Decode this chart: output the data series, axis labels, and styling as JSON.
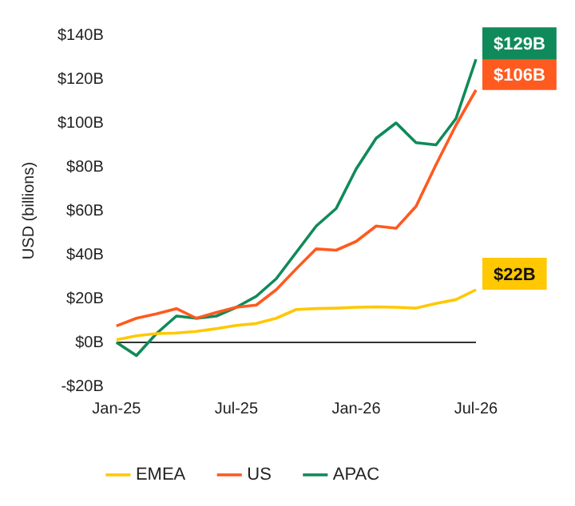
{
  "chart_data": {
    "type": "line",
    "ylabel": "USD (billions)",
    "categories": [
      "Jan-25",
      null,
      null,
      null,
      null,
      null,
      "Jul-25",
      null,
      null,
      null,
      null,
      null,
      "Jan-26",
      null,
      null,
      null,
      null,
      null,
      "Jul-26"
    ],
    "series": [
      {
        "name": "EMEA",
        "color": "#ffc800",
        "values": [
          1.2,
          3,
          4,
          4.3,
          5,
          6.3,
          7.7,
          8.6,
          11,
          15,
          15.4,
          15.6,
          16,
          16.2,
          16,
          15.6,
          17.7,
          19.5,
          24
        ]
      },
      {
        "name": "US",
        "color": "#ff5a1f",
        "values": [
          7.5,
          11,
          13,
          15.4,
          11,
          13.6,
          16,
          17,
          24,
          33.5,
          42.6,
          42,
          46,
          53,
          52,
          62,
          81,
          99,
          115
        ]
      },
      {
        "name": "APAC",
        "color": "#108a5a",
        "values": [
          0,
          -6,
          4,
          12,
          11,
          12,
          16,
          21,
          29,
          41,
          53,
          61,
          79,
          93,
          100,
          91,
          90,
          102,
          129
        ]
      }
    ],
    "ylim": [
      -20,
      140
    ],
    "yticks": [
      {
        "value": -20,
        "label": "-$20B"
      },
      {
        "value": 0,
        "label": "$0B"
      },
      {
        "value": 20,
        "label": "$20B"
      },
      {
        "value": 40,
        "label": "$40B"
      },
      {
        "value": 60,
        "label": "$60B"
      },
      {
        "value": 80,
        "label": "$80B"
      },
      {
        "value": 100,
        "label": "$100B"
      },
      {
        "value": 120,
        "label": "$120B"
      },
      {
        "value": 140,
        "label": "$140B"
      }
    ],
    "ref_lines": [
      {
        "axis": "y",
        "value": 0,
        "color": "#333333"
      }
    ],
    "annotations": [
      "$22B",
      "$106B",
      "$129B"
    ],
    "grid": false,
    "legend": "bottom",
    "marker": "none",
    "line_style": "solid"
  }
}
